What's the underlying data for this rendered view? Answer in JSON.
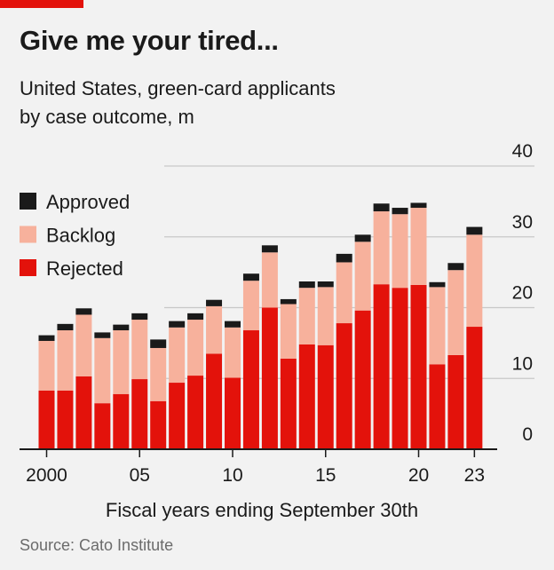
{
  "headline": "Give me your tired...",
  "subtitle_lines": [
    "United States, green-card applicants",
    "by case outcome, m"
  ],
  "source": "Source: Cato Institute",
  "colors": {
    "approved": "#1a1a1a",
    "backlog": "#f7b19c",
    "rejected": "#e3120b",
    "brand": "#e3120b",
    "grid": "#c8c8c8",
    "axis": "#1a1a1a"
  },
  "chart_data": {
    "type": "bar",
    "stacked": true,
    "title": "United States, green-card applicants by case outcome, m",
    "xlabel": "Fiscal years ending September 30th",
    "ylabel": "",
    "ylim": [
      0,
      40
    ],
    "y_ticks": [
      0,
      10,
      20,
      30,
      40
    ],
    "y_axis_side": "right",
    "grid": true,
    "legend_position": "top-left",
    "categories": [
      2000,
      2001,
      2002,
      2003,
      2004,
      2005,
      2006,
      2007,
      2008,
      2009,
      2010,
      2011,
      2012,
      2013,
      2014,
      2015,
      2016,
      2017,
      2018,
      2019,
      2020,
      2021,
      2022,
      2023
    ],
    "x_tick_labels": [
      {
        "year": 2000,
        "label": "2000"
      },
      {
        "year": 2005,
        "label": "05"
      },
      {
        "year": 2010,
        "label": "10"
      },
      {
        "year": 2015,
        "label": "15"
      },
      {
        "year": 2020,
        "label": "20"
      },
      {
        "year": 2023,
        "label": "23"
      }
    ],
    "legend_order": [
      "approved",
      "backlog",
      "rejected"
    ],
    "series": [
      {
        "key": "rejected",
        "name": "Rejected",
        "values": [
          8.3,
          8.3,
          10.3,
          6.5,
          7.8,
          9.9,
          6.8,
          9.4,
          10.4,
          13.5,
          10.1,
          16.8,
          20.0,
          12.8,
          14.8,
          14.7,
          17.8,
          19.6,
          23.3,
          22.8,
          23.2,
          12.0,
          13.3,
          17.3
        ]
      },
      {
        "key": "backlog",
        "name": "Backlog",
        "values": [
          7.0,
          8.5,
          8.7,
          9.2,
          9.0,
          8.4,
          7.5,
          7.8,
          7.9,
          6.7,
          7.1,
          7.0,
          7.8,
          7.7,
          8.0,
          8.2,
          8.6,
          9.7,
          10.3,
          10.4,
          10.9,
          10.9,
          12.0,
          13.0
        ]
      },
      {
        "key": "approved",
        "name": "Approved",
        "values": [
          0.8,
          0.9,
          0.9,
          0.8,
          0.8,
          0.9,
          1.2,
          0.9,
          0.9,
          0.9,
          0.9,
          1.0,
          1.0,
          0.7,
          0.9,
          0.8,
          1.2,
          1.0,
          1.1,
          0.9,
          0.7,
          0.7,
          1.0,
          1.1
        ]
      }
    ]
  }
}
